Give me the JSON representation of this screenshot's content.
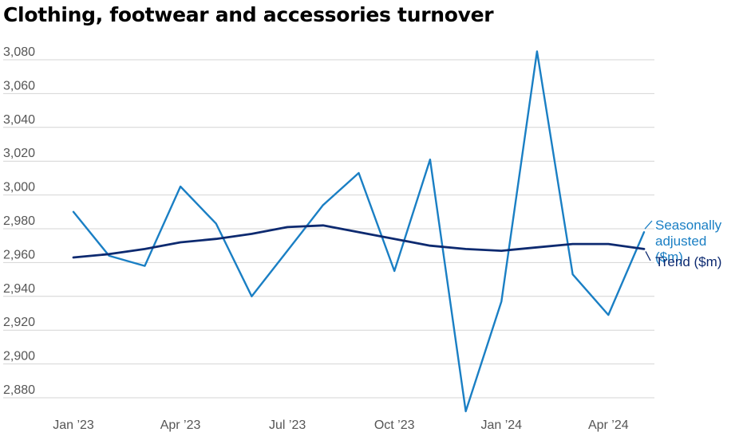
{
  "chart_data": {
    "type": "line",
    "title": "Clothing, footwear and accessories turnover",
    "xlabel": "",
    "ylabel": "",
    "x": [
      "2023-01",
      "2023-02",
      "2023-03",
      "2023-04",
      "2023-05",
      "2023-06",
      "2023-07",
      "2023-08",
      "2023-09",
      "2023-10",
      "2023-11",
      "2023-12",
      "2024-01",
      "2024-02",
      "2024-03",
      "2024-04",
      "2024-05"
    ],
    "x_tick_labels": [
      {
        "x": "2023-01",
        "label": "Jan ’23"
      },
      {
        "x": "2023-04",
        "label": "Apr ’23"
      },
      {
        "x": "2023-07",
        "label": "Jul ’23"
      },
      {
        "x": "2023-10",
        "label": "Oct ’23"
      },
      {
        "x": "2024-01",
        "label": "Jan ’24"
      },
      {
        "x": "2024-04",
        "label": "Apr ’24"
      }
    ],
    "y_ticks": [
      2880,
      2900,
      2920,
      2940,
      2960,
      2980,
      3000,
      3020,
      3040,
      3060,
      3080
    ],
    "y_tick_labels": [
      "2,880",
      "2,900",
      "2,920",
      "2,940",
      "2,960",
      "2,980",
      "3,000",
      "3,020",
      "3,040",
      "3,060",
      "3,080"
    ],
    "ylim": [
      2872,
      3088
    ],
    "grid": true,
    "series": [
      {
        "name": "Seasonally adjusted ($m)",
        "color": "#1a7fc4",
        "values": [
          2990,
          2964,
          2958,
          3005,
          2983,
          2940,
          2967,
          2994,
          3013,
          2955,
          3021,
          2872,
          2937,
          3085,
          2953,
          2929,
          2978
        ]
      },
      {
        "name": "Trend ($m)",
        "color": "#0d2a70",
        "values": [
          2963,
          2965,
          2968,
          2972,
          2974,
          2977,
          2981,
          2982,
          2978,
          2974,
          2970,
          2968,
          2967,
          2969,
          2971,
          2971,
          2968
        ]
      }
    ],
    "legend": {
      "placement": "right",
      "sa_lines": [
        "Seasonally",
        "adjusted",
        "($m)"
      ],
      "trend_label": "Trend ($m)"
    }
  }
}
